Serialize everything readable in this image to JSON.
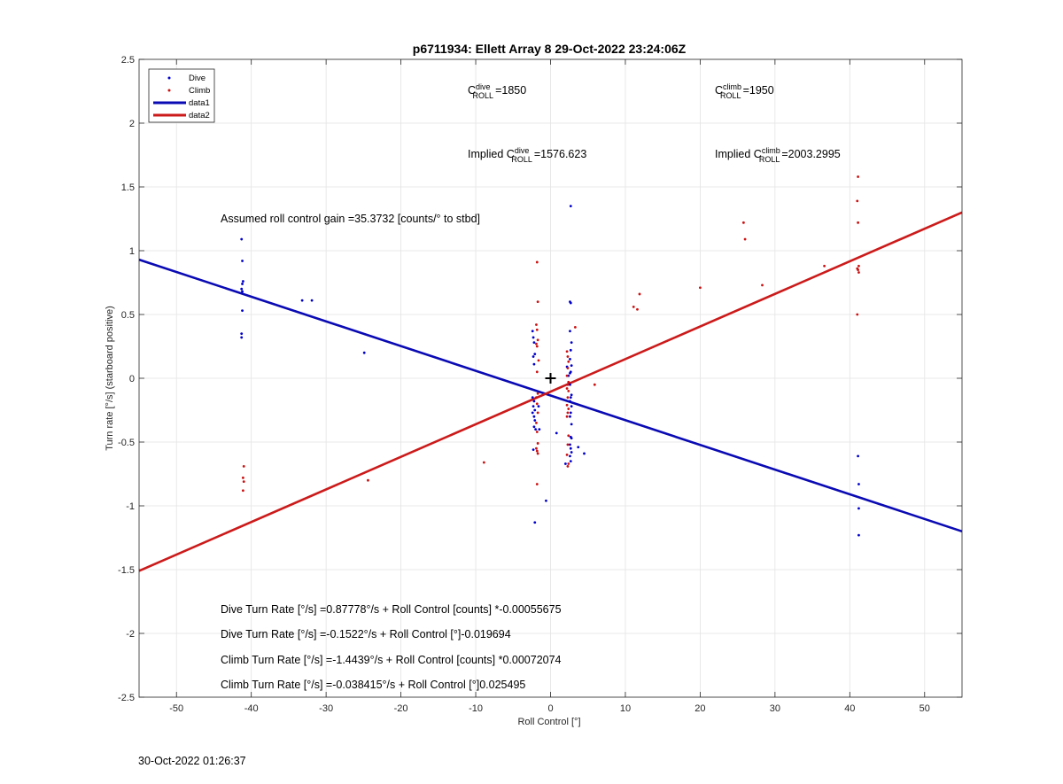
{
  "chart_data": {
    "type": "scatter",
    "title": "p6711934: Ellett Array 8 29-Oct-2022 23:24:06Z",
    "xlabel": "Roll Control [°]",
    "ylabel": "Turn rate [°/s] (starboard positive)",
    "xlim": [
      -55,
      55
    ],
    "ylim": [
      -2.5,
      2.5
    ],
    "x_ticks": [
      -50,
      -40,
      -30,
      -20,
      -10,
      0,
      10,
      20,
      30,
      40,
      50
    ],
    "y_ticks": [
      -2.5,
      -2,
      -1.5,
      -1,
      -0.5,
      0,
      0.5,
      1,
      1.5,
      2,
      2.5
    ],
    "grid": true,
    "legend_position": "top-left",
    "series": [
      {
        "name": "Dive",
        "kind": "points",
        "color": "#0000cc",
        "points": [
          [
            -41.3,
            1.09
          ],
          [
            -41.2,
            0.92
          ],
          [
            -41.1,
            0.76
          ],
          [
            -41.2,
            0.74
          ],
          [
            -41.3,
            0.7
          ],
          [
            -41.2,
            0.68
          ],
          [
            -41.2,
            0.53
          ],
          [
            -41.3,
            0.35
          ],
          [
            -41.3,
            0.32
          ],
          [
            -33.2,
            0.61
          ],
          [
            -31.9,
            0.61
          ],
          [
            -24.9,
            0.2
          ],
          [
            -2.4,
            0.37
          ],
          [
            -2.3,
            0.32
          ],
          [
            -2.2,
            0.28
          ],
          [
            -2.1,
            0.19
          ],
          [
            -2.3,
            0.17
          ],
          [
            -2.2,
            0.11
          ],
          [
            -2.4,
            -0.15
          ],
          [
            -2.2,
            -0.18
          ],
          [
            -2.3,
            -0.22
          ],
          [
            -2.1,
            -0.25
          ],
          [
            -2.4,
            -0.27
          ],
          [
            -2.2,
            -0.3
          ],
          [
            -2.1,
            -0.33
          ],
          [
            -2.2,
            -0.38
          ],
          [
            -2.0,
            -0.4
          ],
          [
            -2.3,
            -0.56
          ],
          [
            -2.1,
            -1.13
          ],
          [
            -1.6,
            -0.22
          ],
          [
            -1.5,
            -0.4
          ],
          [
            -0.6,
            -0.96
          ],
          [
            0.8,
            -0.43
          ],
          [
            2.0,
            -0.67
          ],
          [
            2.2,
            0.09
          ],
          [
            2.4,
            0.02
          ],
          [
            2.6,
            0.04
          ],
          [
            2.7,
            1.35
          ],
          [
            2.6,
            0.6
          ],
          [
            2.7,
            0.59
          ],
          [
            2.6,
            0.37
          ],
          [
            2.8,
            0.28
          ],
          [
            2.7,
            0.22
          ],
          [
            2.6,
            0.15
          ],
          [
            2.8,
            0.1
          ],
          [
            2.7,
            0.05
          ],
          [
            2.6,
            -0.05
          ],
          [
            2.8,
            -0.13
          ],
          [
            2.7,
            -0.15
          ],
          [
            2.6,
            -0.18
          ],
          [
            2.8,
            -0.22
          ],
          [
            2.7,
            -0.27
          ],
          [
            2.6,
            -0.3
          ],
          [
            2.8,
            -0.36
          ],
          [
            2.7,
            -0.46
          ],
          [
            2.8,
            -0.47
          ],
          [
            2.6,
            -0.52
          ],
          [
            2.7,
            -0.55
          ],
          [
            2.8,
            -0.58
          ],
          [
            2.6,
            -0.61
          ],
          [
            2.7,
            -0.65
          ],
          [
            3.7,
            -0.54
          ],
          [
            4.5,
            -0.59
          ],
          [
            41.1,
            -0.61
          ],
          [
            41.2,
            -0.83
          ],
          [
            41.2,
            -1.02
          ],
          [
            41.2,
            -1.23
          ]
        ]
      },
      {
        "name": "Climb",
        "kind": "points",
        "color": "#cc1111",
        "points": [
          [
            -41.0,
            -0.69
          ],
          [
            -41.1,
            -0.78
          ],
          [
            -41.0,
            -0.81
          ],
          [
            -41.1,
            -0.88
          ],
          [
            -24.4,
            -0.8
          ],
          [
            -8.9,
            -0.66
          ],
          [
            -1.8,
            0.91
          ],
          [
            -1.7,
            0.6
          ],
          [
            -1.9,
            0.42
          ],
          [
            -1.8,
            0.38
          ],
          [
            -1.7,
            0.3
          ],
          [
            -1.9,
            0.27
          ],
          [
            -1.8,
            0.25
          ],
          [
            -1.6,
            0.14
          ],
          [
            -1.8,
            0.05
          ],
          [
            -1.7,
            -0.12
          ],
          [
            -1.9,
            -0.15
          ],
          [
            -1.8,
            -0.2
          ],
          [
            -1.7,
            -0.27
          ],
          [
            -1.9,
            -0.35
          ],
          [
            -1.8,
            -0.42
          ],
          [
            -1.7,
            -0.51
          ],
          [
            -1.9,
            -0.55
          ],
          [
            -1.8,
            -0.57
          ],
          [
            -1.7,
            -0.59
          ],
          [
            -1.8,
            -0.83
          ],
          [
            2.2,
            0.21
          ],
          [
            2.3,
            0.17
          ],
          [
            2.4,
            0.13
          ],
          [
            2.3,
            0.08
          ],
          [
            2.2,
            0.02
          ],
          [
            2.4,
            -0.03
          ],
          [
            2.3,
            -0.05
          ],
          [
            2.2,
            -0.08
          ],
          [
            2.4,
            -0.1
          ],
          [
            2.3,
            -0.15
          ],
          [
            2.2,
            -0.21
          ],
          [
            2.4,
            -0.24
          ],
          [
            2.3,
            -0.27
          ],
          [
            2.2,
            -0.3
          ],
          [
            2.4,
            -0.45
          ],
          [
            2.3,
            -0.52
          ],
          [
            2.2,
            -0.6
          ],
          [
            2.4,
            -0.67
          ],
          [
            2.3,
            -0.69
          ],
          [
            3.3,
            0.4
          ],
          [
            5.9,
            -0.05
          ],
          [
            11.1,
            0.56
          ],
          [
            11.6,
            0.54
          ],
          [
            11.9,
            0.66
          ],
          [
            20.0,
            0.71
          ],
          [
            25.8,
            1.22
          ],
          [
            26.0,
            1.09
          ],
          [
            28.3,
            0.73
          ],
          [
            36.6,
            0.88
          ],
          [
            41.1,
            1.58
          ],
          [
            41.0,
            1.39
          ],
          [
            41.1,
            1.22
          ],
          [
            41.2,
            0.88
          ],
          [
            41.0,
            0.86
          ],
          [
            41.1,
            0.85
          ],
          [
            41.2,
            0.83
          ],
          [
            41.0,
            0.5
          ]
        ]
      },
      {
        "name": "data1",
        "kind": "line",
        "color": "#0a0ab4",
        "x": [
          -55,
          55
        ],
        "y": [
          0.93,
          -1.2
        ]
      },
      {
        "name": "data2",
        "kind": "line",
        "color": "#cc1a1a",
        "x": [
          -55,
          55
        ],
        "y": [
          -1.51,
          1.3
        ]
      }
    ],
    "origin_marker": {
      "x": 0,
      "y": 0,
      "symbol": "+"
    },
    "annotations": {
      "c_dive": {
        "base": "C",
        "sup": "dive",
        "sub": "ROLL",
        "value": "=1850"
      },
      "c_climb": {
        "base": "C",
        "sup": "climb",
        "sub": "ROLL",
        "value": "=1950"
      },
      "implied_dive": {
        "prefix": "Implied ",
        "base": "C",
        "sup": "dive",
        "sub": "ROLL",
        "value": "=1576.623"
      },
      "implied_climb": {
        "prefix": "Implied ",
        "base": "C",
        "sup": "climb",
        "sub": "ROLL",
        "value": "=2003.2995"
      },
      "gain": "Assumed roll control gain =35.3732 [counts/° to stbd]",
      "eq1": "Dive Turn Rate [°/s] =0.87778°/s + Roll Control [counts] *-0.00055675",
      "eq2": "Dive Turn Rate [°/s] =-0.1522°/s + Roll Control [°]-0.019694",
      "eq3": "Climb Turn Rate [°/s] =-1.4439°/s + Roll Control [counts] *0.00072074",
      "eq4": "Climb Turn Rate [°/s] =-0.038415°/s + Roll Control [°]0.025495"
    }
  },
  "footer": {
    "timestamp": "30-Oct-2022 01:26:37"
  }
}
